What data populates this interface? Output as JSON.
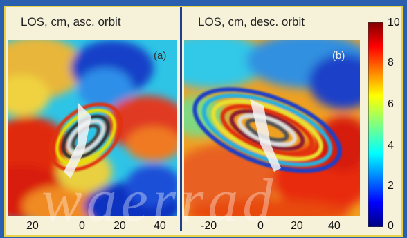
{
  "chart_data": [
    {
      "type": "heatmap",
      "title": "LOS, cm, asc. orbit",
      "panel_label": "(a)",
      "x_ticks": [
        "20",
        "0",
        "20",
        "40"
      ],
      "colorbar": {
        "ticks": [
          "10",
          "8",
          "6",
          "4",
          "2",
          "0"
        ],
        "range": [
          0,
          10
        ],
        "colormap": "jet"
      }
    },
    {
      "type": "heatmap",
      "title": "LOS, cm, desc. orbit",
      "panel_label": "(b)",
      "x_ticks": [
        "-20",
        "0",
        "20",
        "40"
      ],
      "colorbar": {
        "ticks": [
          "10",
          "8",
          "6",
          "4",
          "2",
          "0"
        ],
        "range": [
          0,
          10
        ],
        "colormap": "jet"
      }
    }
  ],
  "watermark": "waerrad"
}
